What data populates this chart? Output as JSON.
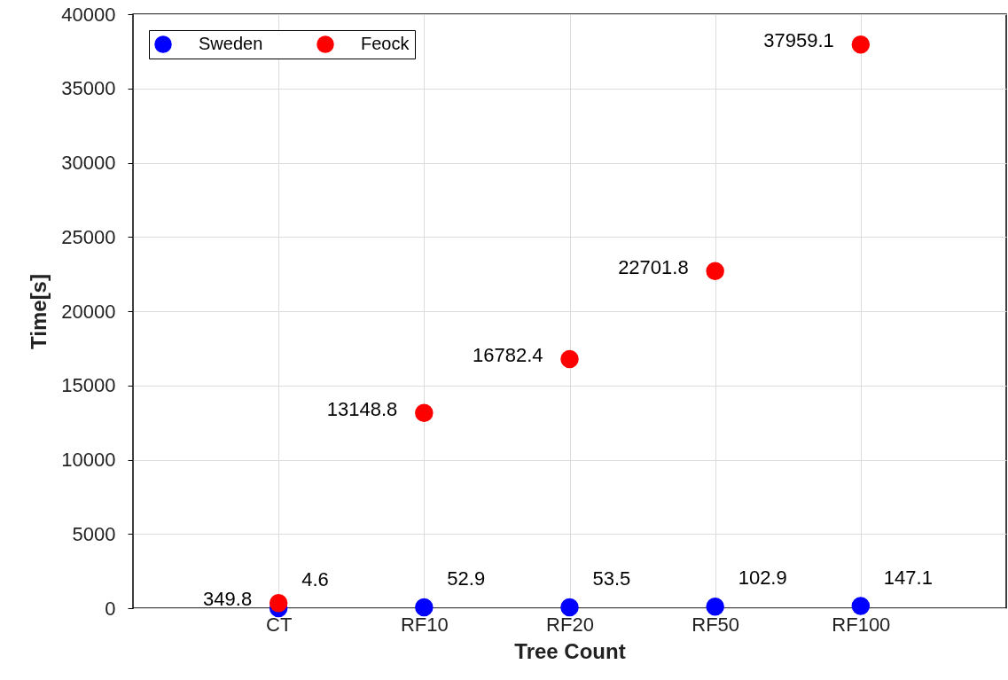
{
  "chart_data": {
    "type": "scatter",
    "xlabel": "Tree Count",
    "ylabel": "Time[s]",
    "categories": [
      "CT",
      "RF10",
      "RF20",
      "RF50",
      "RF100"
    ],
    "series": [
      {
        "name": "Sweden",
        "color": "#0000ff",
        "values": [
          4.6,
          52.9,
          53.5,
          102.9,
          147.1
        ]
      },
      {
        "name": "Feock",
        "color": "#ff0000",
        "values": [
          349.8,
          13148.8,
          16782.4,
          22701.8,
          37959.1
        ]
      }
    ],
    "ylim": [
      0,
      40000
    ],
    "yticks": [
      0,
      5000,
      10000,
      15000,
      20000,
      25000,
      30000,
      35000,
      40000
    ],
    "grid": true,
    "legend": "top left",
    "marker": "circle",
    "data_labels": true
  }
}
